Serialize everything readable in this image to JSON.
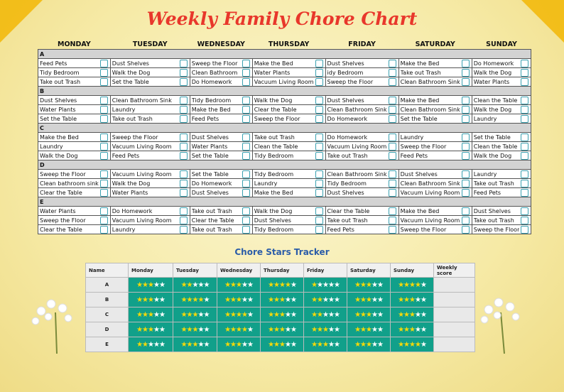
{
  "title": "Weekly Family Chore Chart",
  "days": [
    "MONDAY",
    "TUESDAY",
    "WEDNESDAY",
    "THURSDAY",
    "FRIDAY",
    "SATURDAY",
    "SUNDAY"
  ],
  "groups": [
    {
      "label": "A",
      "rows": [
        [
          "Feed Pets",
          "Dust Shelves",
          "Sweep the Floor",
          "Make the Bed",
          "Dust Shelves",
          "Make the Bed",
          "Do Homework"
        ],
        [
          "Tidy Bedroom",
          "Walk the Dog",
          "Clean Bathroom",
          "Water Plants",
          "idy Bedroom",
          "Take out Trash",
          "Walk the Dog"
        ],
        [
          "Take out Trash",
          "Set the Table",
          "Do Homework",
          "Vacuum Living Room",
          "Sweep the Floor",
          "Clean Bathroom Sink",
          "Water Plants"
        ]
      ]
    },
    {
      "label": "B",
      "rows": [
        [
          "Dust Shelves",
          "Clean Bathroom Sink",
          "Tidy Bedroom",
          "Walk the Dog",
          "Dust Shelves",
          "Make the Bed",
          "Clean the Table"
        ],
        [
          "Water Plants",
          "Laundry",
          "Make the Bed",
          "Clear the Table",
          "Clean Bathroom Sink",
          "Clean Bathroom Sink",
          "Walk the Dog"
        ],
        [
          "Set the Table",
          "Take out Trash",
          "Feed Pets",
          "Sweep the Floor",
          "Do Homework",
          "Set the Table",
          "Laundry"
        ]
      ]
    },
    {
      "label": "C",
      "rows": [
        [
          "Make the Bed",
          "Sweep the Floor",
          "Dust Shelves",
          "Take out Trash",
          "Do Homework",
          "Laundry",
          "Set the Table"
        ],
        [
          "Laundry",
          "Vacuum Living Room",
          "Water Plants",
          "Clean the Table",
          "Vacuum Living Room",
          "Sweep the Floor",
          "Clean the Table"
        ],
        [
          "Walk the Dog",
          "Feed Pets",
          "Set the Table",
          "Tidy Bedroom",
          "Take out Trash",
          "Feed Pets",
          "Walk the Dog"
        ]
      ]
    },
    {
      "label": "D",
      "rows": [
        [
          "Sweep the Floor",
          "Vacuum Living Room",
          "Set the Table",
          "Tidy Bedroom",
          "Clean Bathroom Sink",
          "Dust Shelves",
          "Laundry"
        ],
        [
          "Clean bathroom sink",
          "Walk the Dog",
          "Do Homework",
          "Laundry",
          "Tidy Bedroom",
          "Clean Bathroom Sink",
          "Take out Trash"
        ],
        [
          "Clear the Table",
          "Water Plants",
          "Dust Shelves",
          "Make the Bed",
          "Dust Shelves",
          "Vacuum Living Room",
          "Feed Pets"
        ]
      ]
    },
    {
      "label": "E",
      "rows": [
        [
          "Water Plants",
          "Do Homework",
          "Take out Trash",
          "Walk the Dog",
          "Clear the Table",
          "Make the Bed",
          "Dust Shelves"
        ],
        [
          "Sweep the Floor",
          "Vacuum Living Room",
          "Clear the Table",
          "Dust Shelves",
          "Take out Trash",
          "Vacuum Living Room",
          "Take out Trash"
        ],
        [
          "Clear the Table",
          "Laundry",
          "Take out Trash",
          "Tidy Bedroom",
          "Feed Pets",
          "Sweep the Floor",
          "Sweep the Floor"
        ]
      ]
    }
  ],
  "tracker": {
    "title": "Chore Stars Tracker",
    "headers": [
      "Name",
      "Monday",
      "Tuesday",
      "Wednesday",
      "Thursday",
      "Friday",
      "Saturday",
      "Sunday",
      "Weekly score"
    ],
    "rows": [
      {
        "name": "A",
        "stars": [
          3,
          2,
          3,
          4,
          1,
          3,
          4
        ]
      },
      {
        "name": "B",
        "stars": [
          3,
          4,
          3,
          3,
          2,
          3,
          3
        ]
      },
      {
        "name": "C",
        "stars": [
          3,
          3,
          4,
          3,
          2,
          3,
          3
        ]
      },
      {
        "name": "D",
        "stars": [
          3,
          3,
          4,
          3,
          3,
          3,
          3
        ]
      },
      {
        "name": "E",
        "stars": [
          2,
          3,
          3,
          3,
          3,
          3,
          4
        ]
      }
    ]
  }
}
